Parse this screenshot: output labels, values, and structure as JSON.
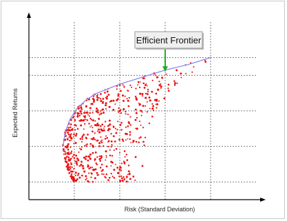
{
  "chart_data": {
    "type": "scatter",
    "title": "",
    "xlabel": "Risk (Standard Deviation)",
    "ylabel": "Expected Returns",
    "xlim": [
      0,
      10
    ],
    "ylim": [
      0,
      10
    ],
    "grid": true,
    "grid_style": "dotted",
    "x_ticks": [
      2,
      4,
      6,
      8
    ],
    "y_ticks": [
      1,
      3,
      5,
      7,
      8
    ],
    "tick_labels_shown": false,
    "colors": {
      "points": "#ee1111",
      "frontier": "#8888ee",
      "arrow": "#22aa22",
      "grid": "#7a7a7a",
      "axis": "#000000"
    },
    "series": [
      {
        "name": "Efficient Frontier",
        "type": "line",
        "points": [
          [
            1.5,
            3.0
          ],
          [
            1.6,
            3.8
          ],
          [
            1.8,
            4.5
          ],
          [
            2.1,
            5.1
          ],
          [
            2.5,
            5.6
          ],
          [
            3.0,
            6.0
          ],
          [
            4.0,
            6.5
          ],
          [
            5.0,
            6.9
          ],
          [
            6.0,
            7.3
          ],
          [
            7.0,
            7.6
          ],
          [
            8.0,
            8.0
          ]
        ]
      }
    ],
    "annotations": [
      {
        "text": "Efficient Frontier",
        "points_to": [
          6.0,
          7.2
        ]
      }
    ]
  }
}
